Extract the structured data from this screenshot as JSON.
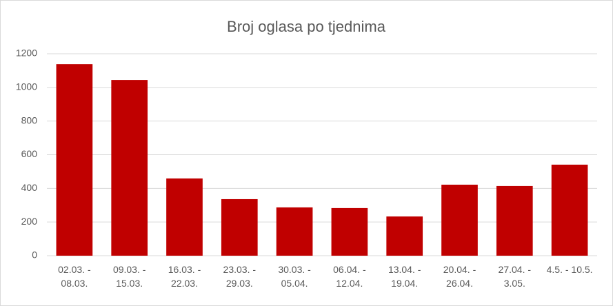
{
  "chart_data": {
    "type": "bar",
    "title": "Broj oglasa po tjednima",
    "categories": [
      "02.03. - 08.03.",
      "09.03. - 15.03.",
      "16.03. - 22.03.",
      "23.03. - 29.03.",
      "30.03. - 05.04.",
      "06.04. - 12.04.",
      "13.04. - 19.04.",
      "20.04. - 26.04.",
      "27.04. - 3.05.",
      "4.5. - 10.5."
    ],
    "values": [
      1138,
      1044,
      459,
      336,
      287,
      283,
      233,
      422,
      414,
      541
    ],
    "color": "#c00000",
    "ylim": [
      0,
      1200
    ],
    "yticks": [
      0,
      200,
      400,
      600,
      800,
      1000,
      1200
    ],
    "grid": true
  }
}
